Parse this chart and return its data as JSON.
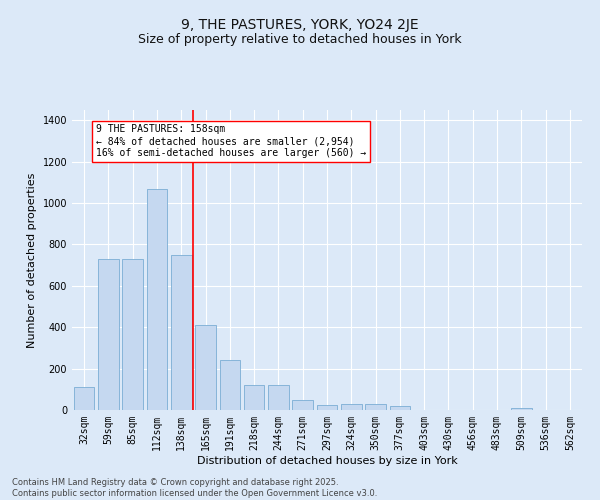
{
  "title1": "9, THE PASTURES, YORK, YO24 2JE",
  "title2": "Size of property relative to detached houses in York",
  "xlabel": "Distribution of detached houses by size in York",
  "ylabel": "Number of detached properties",
  "categories": [
    "32sqm",
    "59sqm",
    "85sqm",
    "112sqm",
    "138sqm",
    "165sqm",
    "191sqm",
    "218sqm",
    "244sqm",
    "271sqm",
    "297sqm",
    "324sqm",
    "350sqm",
    "377sqm",
    "403sqm",
    "430sqm",
    "456sqm",
    "483sqm",
    "509sqm",
    "536sqm",
    "562sqm"
  ],
  "values": [
    110,
    730,
    730,
    1070,
    750,
    410,
    240,
    120,
    120,
    50,
    25,
    28,
    28,
    20,
    0,
    0,
    0,
    0,
    8,
    0,
    0
  ],
  "bar_color": "#c5d8f0",
  "bar_edge_color": "#7aadd4",
  "red_line_index": 4.5,
  "annotation_text": "9 THE PASTURES: 158sqm\n← 84% of detached houses are smaller (2,954)\n16% of semi-detached houses are larger (560) →",
  "bg_color": "#dce9f8",
  "grid_color": "#ffffff",
  "footnote": "Contains HM Land Registry data © Crown copyright and database right 2025.\nContains public sector information licensed under the Open Government Licence v3.0.",
  "ylim": [
    0,
    1450
  ],
  "title1_fontsize": 10,
  "title2_fontsize": 9,
  "axis_label_fontsize": 8,
  "tick_fontsize": 7,
  "annot_fontsize": 7,
  "footnote_fontsize": 6
}
